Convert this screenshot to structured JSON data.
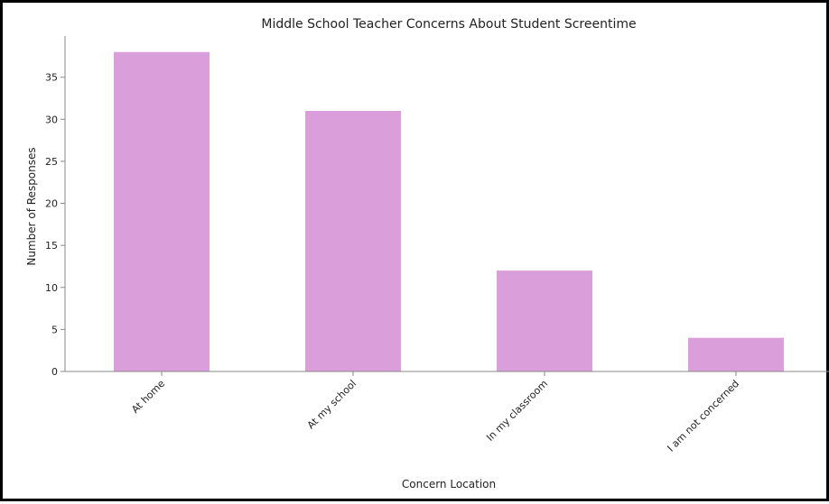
{
  "chart_data": {
    "type": "bar",
    "title": "Middle School Teacher Concerns About Student Screentime",
    "xlabel": "Concern Location",
    "ylabel": "Number of Responses",
    "categories": [
      "At home",
      "At my school",
      "In my classroom",
      "I am not concerned"
    ],
    "values": [
      38,
      31,
      12,
      4
    ],
    "ylim": [
      0,
      39.9
    ],
    "yticks": [
      0,
      5,
      10,
      15,
      20,
      25,
      30,
      35
    ],
    "grid": false,
    "legend": "none",
    "colors": {
      "bar": "#DA9EDA",
      "axis": "#888888",
      "text": "#222222"
    }
  }
}
